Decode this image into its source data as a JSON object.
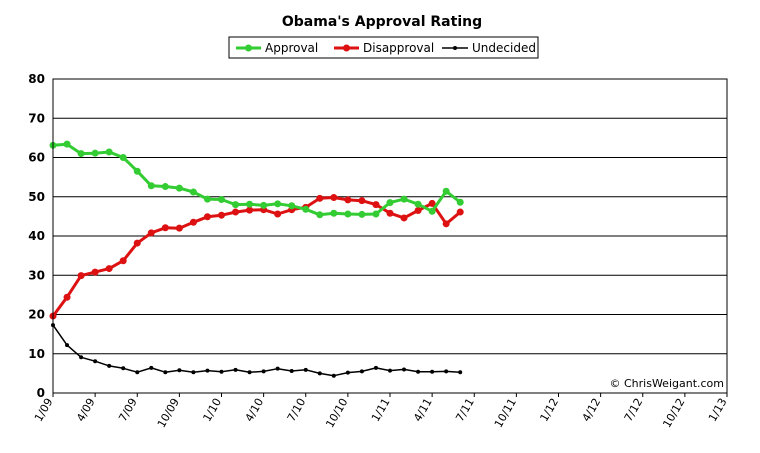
{
  "chart_data": {
    "type": "line",
    "title": "Obama's Approval Rating",
    "xlabel": "",
    "ylabel": "",
    "ylim": [
      0,
      80
    ],
    "yticks": [
      "0",
      "10",
      "20",
      "30",
      "40",
      "50",
      "60",
      "70",
      "80"
    ],
    "xticks": [
      "1/09",
      "4/09",
      "7/09",
      "10/09",
      "1/10",
      "4/10",
      "7/10",
      "10/10",
      "1/11",
      "4/11",
      "7/11",
      "10/11",
      "1/12",
      "4/12",
      "7/12",
      "10/12",
      "1/13"
    ],
    "grid": "horizontal",
    "legend_position": "top",
    "watermark": "© ChrisWeigant.com",
    "series": [
      {
        "name": "Approval",
        "color": "#33cc33",
        "values": [
          63.1,
          63.4,
          61.0,
          61.1,
          61.4,
          60.0,
          56.5,
          52.8,
          52.6,
          52.2,
          51.2,
          49.4,
          49.3,
          48.0,
          48.1,
          47.8,
          48.2,
          47.7,
          46.8,
          45.4,
          45.8,
          45.6,
          45.5,
          45.6,
          48.5,
          49.4,
          48.1,
          46.3,
          51.4,
          48.6
        ]
      },
      {
        "name": "Disapproval",
        "color": "#dd1111",
        "values": [
          19.6,
          24.4,
          29.9,
          30.8,
          31.7,
          33.7,
          38.2,
          40.8,
          42.1,
          42.0,
          43.5,
          44.9,
          45.3,
          46.1,
          46.6,
          46.7,
          45.6,
          46.7,
          47.3,
          49.6,
          49.8,
          49.2,
          49.0,
          48.0,
          45.8,
          44.6,
          46.5,
          48.3,
          43.1,
          46.1
        ]
      },
      {
        "name": "Undecided",
        "color": "#000000",
        "values": [
          17.3,
          12.2,
          9.1,
          8.1,
          6.9,
          6.3,
          5.3,
          6.4,
          5.3,
          5.8,
          5.3,
          5.7,
          5.4,
          5.9,
          5.3,
          5.5,
          6.2,
          5.6,
          5.9,
          5.0,
          4.4,
          5.2,
          5.5,
          6.4,
          5.7,
          6.0,
          5.4,
          5.4,
          5.5,
          5.3
        ]
      }
    ]
  }
}
